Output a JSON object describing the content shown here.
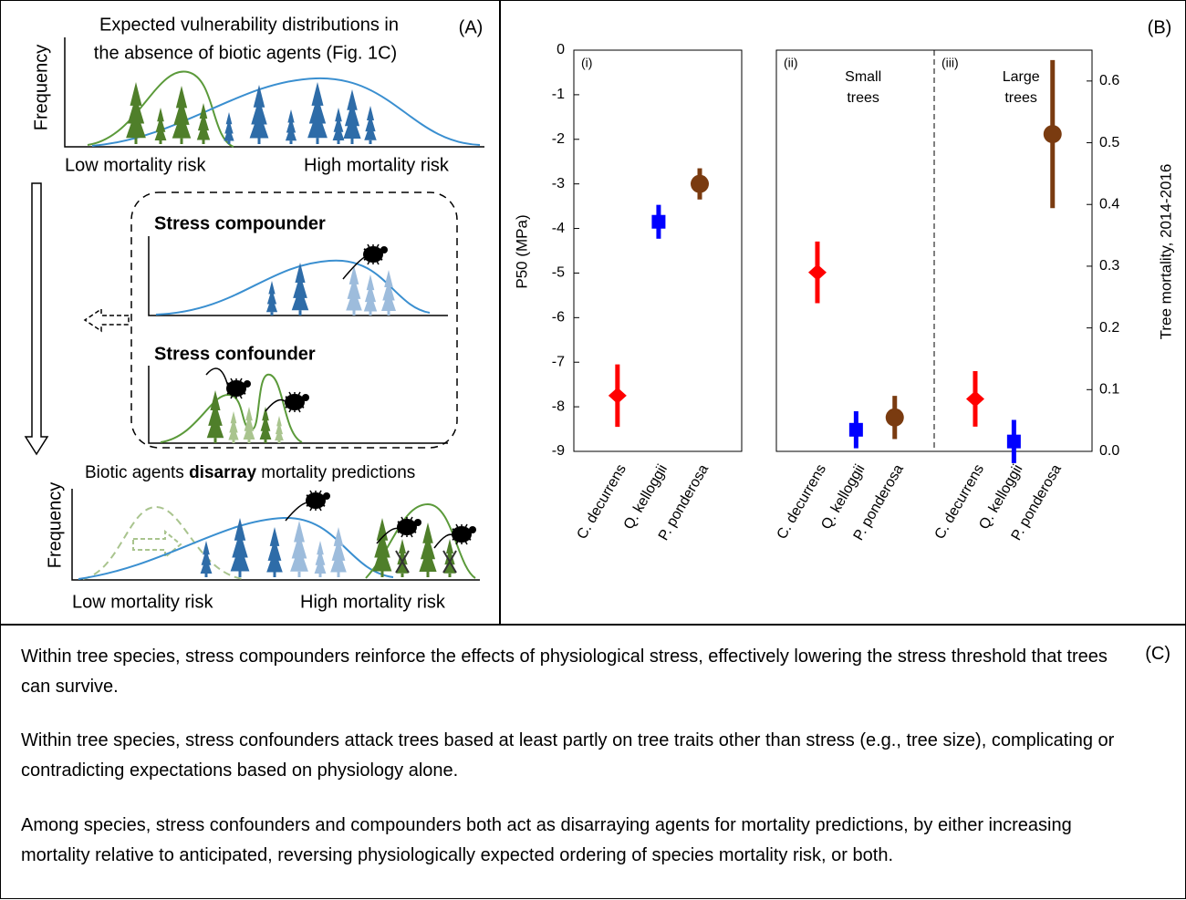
{
  "panel_a": {
    "label": "(A)",
    "title_lines": [
      "Expected vulnerability distributions in",
      "the absence of biotic agents (Fig. 1C)"
    ],
    "top": {
      "ylabel": "Frequency",
      "low": "Low mortality risk",
      "high": "High mortality risk"
    },
    "compounder": "Stress compounder",
    "confounder": "Stress confounder",
    "bottom": {
      "caption": [
        "Biotic agents ",
        "disarray",
        " mortality predictions"
      ],
      "ylabel": "Frequency",
      "low": "Low mortality risk",
      "high": "High mortality risk"
    }
  },
  "panel_b_label": "(B)",
  "chart_data": [
    {
      "type": "errorbar",
      "panel": "(i)",
      "ylabel": "P50 (MPa)",
      "categories": [
        "C. decurrens",
        "Q. kelloggii",
        "P. ponderosa"
      ],
      "colors": [
        "#ff0000",
        "#0000ff",
        "#7a3b10"
      ],
      "markers": [
        "diamond",
        "square",
        "circle"
      ],
      "values": [
        -7.75,
        -3.85,
        -3.0
      ],
      "errors": [
        0.7,
        0.38,
        0.35
      ],
      "ylim": [
        -9,
        0
      ],
      "yticks": [
        0,
        -1,
        -2,
        -3,
        -4,
        -5,
        -6,
        -7,
        -8,
        -9
      ]
    },
    {
      "type": "errorbar",
      "y2label": "Tree mortality, 2014-2016",
      "categories": [
        "C. decurrens",
        "Q. kelloggii",
        "P. ponderosa"
      ],
      "colors": [
        "#ff0000",
        "#0000ff",
        "#7a3b10"
      ],
      "markers": [
        "diamond",
        "square",
        "circle"
      ],
      "series": [
        {
          "name": "Small trees",
          "panel": "(ii)",
          "axis": "y2",
          "values": [
            0.29,
            0.035,
            0.055
          ],
          "errors": [
            0.05,
            0.03,
            0.035
          ]
        },
        {
          "name": "Large trees",
          "panel": "(iii)",
          "axis": "y2",
          "values": [
            0.085,
            0.016,
            0.514
          ],
          "errors": [
            0.045,
            0.035,
            0.12
          ]
        }
      ],
      "y2lim": [
        0,
        0.65
      ],
      "y2ticks": [
        {
          "value": 0,
          "label": "0.0"
        },
        0.1,
        0.2,
        0.3,
        0.4,
        0.5,
        0.6
      ]
    }
  ],
  "panel_c": {
    "label": "(C)",
    "paragraphs": [
      "Within tree species, stress compounders reinforce the effects of physiological stress, effectively lowering the stress threshold that trees can survive.",
      "Within tree species, stress confounders attack trees based at least partly on tree traits other than stress (e.g., tree size), complicating or contradicting expectations based on physiology alone.",
      "Among species, stress confounders and compounders both act as disarraying agents for mortality predictions, by either increasing mortality relative to anticipated, reversing physiologically expected ordering of species mortality risk, or both."
    ]
  }
}
